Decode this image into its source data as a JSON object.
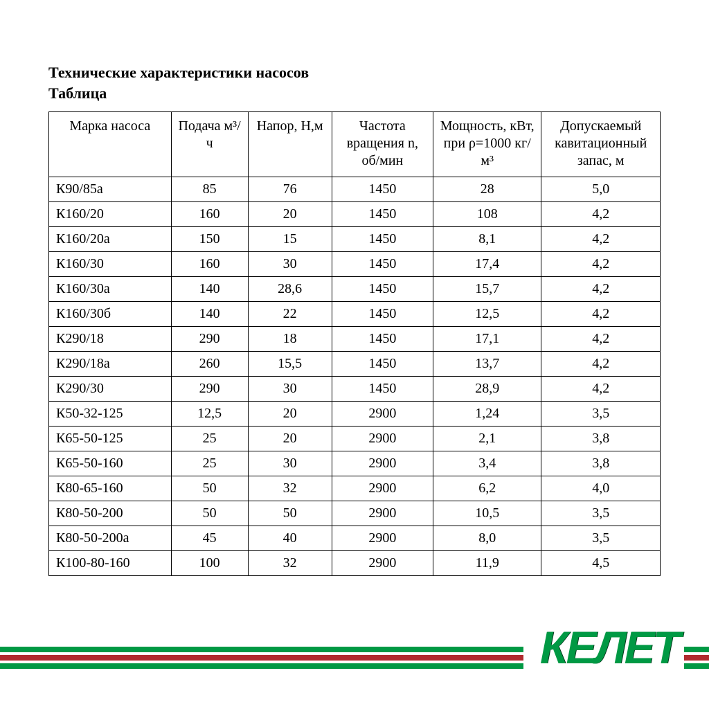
{
  "title_line1": "Технические характеристики насосов",
  "title_line2": "Таблица",
  "brand": "КЕЛЕТ",
  "table": {
    "type": "table",
    "columns": [
      "Марка насоса",
      "Подача м³/ч",
      "Напор, Н,м",
      "Частота вращения n,  об/мин",
      "Мощность, кВт, при ρ=1000 кг/м³",
      "Допускаемый кавитационный запас, м"
    ],
    "col_classes": [
      "col-model",
      "col-flow",
      "col-head",
      "col-rpm",
      "col-power",
      "col-cav"
    ],
    "font_size_pt": 15,
    "border_color": "#000000",
    "background_color": "#ffffff",
    "rows": [
      [
        "К90/85а",
        "85",
        "76",
        "1450",
        "28",
        "5,0"
      ],
      [
        "К160/20",
        "160",
        "20",
        "1450",
        "108",
        "4,2"
      ],
      [
        "К160/20а",
        "150",
        "15",
        "1450",
        "8,1",
        "4,2"
      ],
      [
        "К160/30",
        "160",
        "30",
        "1450",
        "17,4",
        "4,2"
      ],
      [
        "К160/30а",
        "140",
        "28,6",
        "1450",
        "15,7",
        "4,2"
      ],
      [
        "К160/30б",
        "140",
        "22",
        "1450",
        "12,5",
        "4,2"
      ],
      [
        "К290/18",
        "290",
        "18",
        "1450",
        "17,1",
        "4,2"
      ],
      [
        "К290/18а",
        "260",
        "15,5",
        "1450",
        "13,7",
        "4,2"
      ],
      [
        "К290/30",
        "290",
        "30",
        "1450",
        "28,9",
        "4,2"
      ],
      [
        "К50-32-125",
        "12,5",
        "20",
        "2900",
        "1,24",
        "3,5"
      ],
      [
        "К65-50-125",
        "25",
        "20",
        "2900",
        "2,1",
        "3,8"
      ],
      [
        "К65-50-160",
        "25",
        "30",
        "2900",
        "3,4",
        "3,8"
      ],
      [
        "К80-65-160",
        "50",
        "32",
        "2900",
        "6,2",
        "4,0"
      ],
      [
        "К80-50-200",
        "50",
        "50",
        "2900",
        "10,5",
        "3,5"
      ],
      [
        "К80-50-200а",
        "45",
        "40",
        "2900",
        "8,0",
        "3,5"
      ],
      [
        "К100-80-160",
        "100",
        "32",
        "2900",
        "11,9",
        "4,5"
      ]
    ]
  },
  "footer_colors": {
    "green": "#009944",
    "red": "#b02b2e",
    "brand_text": "#009944"
  }
}
